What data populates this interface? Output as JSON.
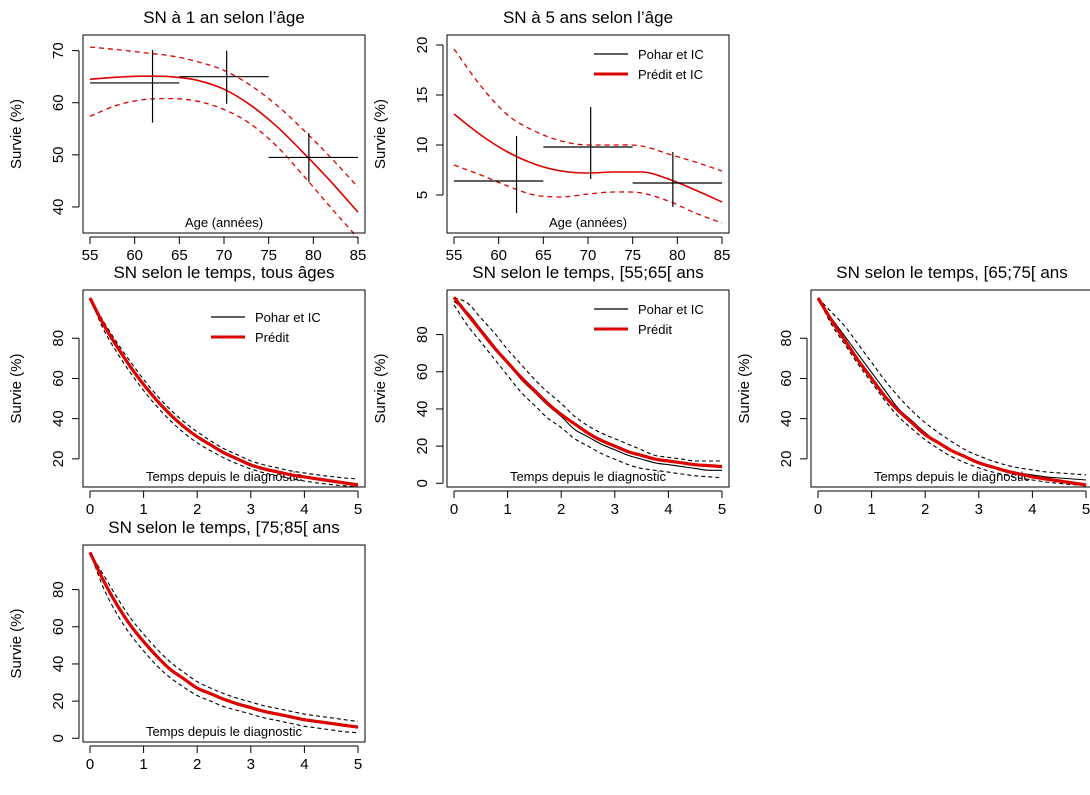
{
  "colors": {
    "observed": "#000000",
    "predicted": "#dd0000",
    "background": "#ffffff"
  },
  "legends": [
    {
      "items": [
        {
          "label": "Pohar et IC",
          "color": "#000000"
        },
        {
          "label": "Prédit et IC",
          "color": "#dd0000"
        }
      ]
    },
    {
      "items": [
        {
          "label": "Pohar et IC",
          "color": "#000000"
        },
        {
          "label": "Prédit",
          "color": "#dd0000"
        }
      ]
    }
  ],
  "chart_data": [
    {
      "type": "line",
      "title": "SN à 1 an selon l’âge",
      "xlabel": "Age (années)",
      "ylabel": "Survie (%)",
      "xlim": [
        55,
        85
      ],
      "ylim": [
        35,
        73
      ],
      "xticks": [
        55,
        60,
        65,
        70,
        75,
        80,
        85
      ],
      "yticks": [
        40,
        50,
        60,
        70
      ],
      "series": [
        {
          "name": "Prédit et IC",
          "role": "estimate",
          "x": [
            55,
            58,
            61,
            64,
            67,
            70,
            73,
            76,
            79,
            82,
            85
          ],
          "y": [
            64.5,
            64.9,
            65.1,
            65.0,
            64.3,
            62.6,
            59.5,
            55.3,
            50.2,
            44.8,
            39.0
          ]
        },
        {
          "role": "ci-upper",
          "x": [
            55,
            58,
            61,
            64,
            67,
            70,
            73,
            76,
            79,
            82,
            85
          ],
          "y": [
            70.7,
            70.2,
            69.6,
            69.0,
            67.9,
            66.2,
            63.3,
            59.4,
            54.6,
            49.4,
            43.8
          ]
        },
        {
          "role": "ci-lower",
          "x": [
            55,
            58,
            61,
            64,
            67,
            70,
            73,
            76,
            79,
            82,
            85
          ],
          "y": [
            57.4,
            59.5,
            60.6,
            60.8,
            60.3,
            58.7,
            55.9,
            51.5,
            45.8,
            39.8,
            34.0
          ]
        }
      ],
      "points": [
        {
          "x": 62,
          "xmin": 55,
          "xmax": 65,
          "y": 63.8,
          "ymin": 56.2,
          "ymax": 70.1
        },
        {
          "x": 70.3,
          "xmin": 65,
          "xmax": 75,
          "y": 65.0,
          "ymin": 59.8,
          "ymax": 70.0
        },
        {
          "x": 79.5,
          "xmin": 75,
          "xmax": 85,
          "y": 49.5,
          "ymin": 44.8,
          "ymax": 54.2
        }
      ]
    },
    {
      "type": "line",
      "title": "SN à 5 ans selon l’âge",
      "xlabel": "Age (années)",
      "ylabel": "Survie (%)",
      "xlim": [
        55,
        85
      ],
      "ylim": [
        1.2,
        21
      ],
      "xticks": [
        55,
        60,
        65,
        70,
        75,
        80,
        85
      ],
      "yticks": [
        5,
        10,
        15,
        20
      ],
      "legend": 0,
      "series": [
        {
          "name": "Prédit et IC",
          "role": "estimate",
          "x": [
            55,
            58,
            61,
            64,
            67,
            70,
            73,
            76,
            79,
            82,
            85
          ],
          "y": [
            13.1,
            11.0,
            9.3,
            8.1,
            7.4,
            7.2,
            7.3,
            7.3,
            6.6,
            5.5,
            4.3
          ]
        },
        {
          "role": "ci-upper",
          "x": [
            55,
            58,
            61,
            64,
            67,
            70,
            73,
            76,
            79,
            82,
            85
          ],
          "y": [
            19.6,
            15.9,
            13.0,
            11.4,
            10.4,
            10.0,
            10.0,
            9.9,
            9.1,
            8.3,
            7.4
          ]
        },
        {
          "role": "ci-lower",
          "x": [
            55,
            58,
            61,
            64,
            67,
            70,
            73,
            76,
            79,
            82,
            85
          ],
          "y": [
            8.0,
            7.0,
            5.9,
            5.0,
            4.8,
            5.1,
            5.3,
            5.2,
            4.4,
            3.2,
            2.2
          ]
        }
      ],
      "points": [
        {
          "x": 62,
          "xmin": 55,
          "xmax": 65,
          "y": 6.4,
          "ymin": 3.2,
          "ymax": 10.9
        },
        {
          "x": 70.3,
          "xmin": 65,
          "xmax": 75,
          "y": 9.8,
          "ymin": 6.6,
          "ymax": 13.8
        },
        {
          "x": 79.5,
          "xmin": 75,
          "xmax": 85,
          "y": 6.2,
          "ymin": 3.8,
          "ymax": 9.3
        }
      ]
    },
    {
      "type": "line",
      "title": "SN selon le temps, tous âges",
      "xlabel": "Temps depuis le diagnostic",
      "ylabel": "Survie (%)",
      "xlim": [
        0,
        5
      ],
      "ylim": [
        6,
        104
      ],
      "xticks": [
        0,
        1,
        2,
        3,
        4,
        5
      ],
      "yticks": [
        20,
        40,
        60,
        80
      ],
      "legend": 1,
      "x": [
        0,
        0.25,
        0.5,
        0.75,
        1,
        1.25,
        1.5,
        1.75,
        2,
        2.25,
        2.5,
        2.75,
        3,
        3.25,
        3.5,
        3.75,
        4,
        4.25,
        4.5,
        4.75,
        5
      ],
      "series": [
        {
          "name": "Prédit",
          "role": "predicted",
          "y": [
            100,
            87,
            76,
            66,
            57,
            49,
            42,
            36,
            31,
            27,
            23,
            20,
            17,
            15,
            13.5,
            12,
            11,
            10,
            9,
            8,
            7
          ]
        },
        {
          "name": "Pohar et IC",
          "role": "observed",
          "y": [
            100,
            86.5,
            75.5,
            65.5,
            56.5,
            48.5,
            41.5,
            35.5,
            30.5,
            26.5,
            22.5,
            19.5,
            16.5,
            14.5,
            13,
            11.8,
            10.8,
            9.8,
            8.8,
            7.9,
            7
          ]
        },
        {
          "role": "ci-upper",
          "y": [
            100,
            88.5,
            78,
            68.5,
            59.5,
            51.5,
            44.5,
            38.5,
            33.5,
            29,
            25,
            22,
            19,
            17,
            15.5,
            14,
            13,
            12,
            11.2,
            10.5,
            10
          ]
        },
        {
          "role": "ci-lower",
          "y": [
            100,
            84.5,
            73,
            63,
            54,
            46,
            39,
            33,
            28,
            24,
            20.5,
            17.5,
            15,
            13,
            11.5,
            10.2,
            9,
            8,
            7.2,
            6.6,
            6
          ]
        }
      ]
    },
    {
      "type": "line",
      "title": "SN selon le temps, [55;65[ ans",
      "xlabel": "Temps depuis le diagnostic",
      "ylabel": "Survie (%)",
      "xlim": [
        0,
        5
      ],
      "ylim": [
        -2,
        104
      ],
      "xticks": [
        0,
        1,
        2,
        3,
        4,
        5
      ],
      "yticks": [
        0,
        20,
        40,
        60,
        80
      ],
      "legend": 1,
      "x": [
        0,
        0.25,
        0.5,
        0.75,
        1,
        1.25,
        1.5,
        1.75,
        2,
        2.25,
        2.5,
        2.75,
        3,
        3.25,
        3.5,
        3.75,
        4,
        4.25,
        4.5,
        4.75,
        5
      ],
      "series": [
        {
          "name": "Prédit",
          "role": "predicted",
          "y": [
            100,
            91,
            82,
            73,
            65,
            57,
            50,
            43,
            37,
            32,
            27,
            23,
            20,
            17,
            15,
            13,
            12,
            11,
            10,
            9.5,
            9
          ]
        },
        {
          "name": "Pohar et IC",
          "role": "observed",
          "y": [
            98,
            92,
            83,
            74,
            65,
            56,
            49,
            42,
            36,
            29,
            25,
            21,
            18,
            15,
            13,
            11,
            10,
            9,
            8,
            7,
            7
          ]
        },
        {
          "role": "ci-upper",
          "y": [
            100,
            97,
            89,
            81,
            72,
            64,
            56,
            49,
            43,
            36,
            31,
            27,
            24,
            21,
            18,
            15,
            14,
            13,
            12,
            12,
            12
          ]
        },
        {
          "role": "ci-lower",
          "y": [
            96,
            85,
            76,
            67,
            58,
            49,
            42,
            35,
            30,
            24,
            20,
            16,
            13,
            10,
            8,
            7,
            6,
            5,
            4,
            3.5,
            3
          ]
        }
      ]
    },
    {
      "type": "line",
      "title": "SN selon le temps, [65;75[ ans",
      "xlabel": "Temps depuis le diagnostic",
      "ylabel": "Survie (%)",
      "xlim": [
        0,
        5
      ],
      "ylim": [
        6,
        104
      ],
      "xticks": [
        0,
        1,
        2,
        3,
        4,
        5
      ],
      "yticks": [
        20,
        40,
        60,
        80
      ],
      "x": [
        0,
        0.25,
        0.5,
        0.75,
        1,
        1.25,
        1.5,
        1.75,
        2,
        2.25,
        2.5,
        2.75,
        3,
        3.25,
        3.5,
        3.75,
        4,
        4.25,
        4.5,
        4.75,
        5
      ],
      "series": [
        {
          "name": "Prédit",
          "role": "predicted",
          "y": [
            100,
            89,
            79,
            69,
            60,
            51,
            44,
            38,
            32,
            28,
            24,
            21,
            18,
            16,
            14,
            12.5,
            11,
            10,
            9,
            8,
            7
          ]
        },
        {
          "name": "Pohar et IC",
          "role": "observed",
          "y": [
            100,
            90,
            81,
            72,
            63,
            54,
            45,
            39,
            33,
            28,
            24,
            21,
            18,
            16,
            14.5,
            13,
            12,
            11,
            10.5,
            10,
            9.5
          ]
        },
        {
          "role": "ci-upper",
          "y": [
            100,
            93,
            86,
            77,
            68,
            59,
            51,
            44,
            38,
            33,
            28.5,
            24.5,
            21.5,
            19,
            17,
            15.5,
            14.5,
            13.5,
            13,
            12.5,
            12
          ]
        },
        {
          "role": "ci-lower",
          "y": [
            100,
            87,
            77,
            67,
            58,
            49,
            41,
            35,
            29.5,
            25,
            21,
            18,
            15.5,
            13.5,
            12,
            10.5,
            9.5,
            8.5,
            7.8,
            7.2,
            6.8
          ]
        }
      ]
    },
    {
      "type": "line",
      "title": "SN selon le temps, [75;85[ ans",
      "xlabel": "Temps depuis le diagnostic",
      "ylabel": "Survie (%)",
      "xlim": [
        0,
        5
      ],
      "ylim": [
        -2,
        104
      ],
      "xticks": [
        0,
        1,
        2,
        3,
        4,
        5
      ],
      "yticks": [
        0,
        20,
        40,
        60,
        80
      ],
      "x": [
        0,
        0.25,
        0.5,
        0.75,
        1,
        1.25,
        1.5,
        1.75,
        2,
        2.25,
        2.5,
        2.75,
        3,
        3.25,
        3.5,
        3.75,
        4,
        4.25,
        4.5,
        4.75,
        5
      ],
      "series": [
        {
          "name": "Prédit",
          "role": "predicted",
          "y": [
            100,
            85,
            72,
            61,
            52,
            44,
            37,
            32,
            27,
            24,
            21,
            18.5,
            16.5,
            14.5,
            13,
            11.5,
            10,
            9,
            8,
            7,
            6
          ]
        },
        {
          "name": "Pohar et IC",
          "role": "observed",
          "y": [
            100,
            84.5,
            71.5,
            60.5,
            51.5,
            43.5,
            36.5,
            31.5,
            26.5,
            23.5,
            20.5,
            18,
            16,
            14,
            12.5,
            11,
            9.5,
            8.5,
            7.5,
            6.5,
            5.5
          ]
        },
        {
          "role": "ci-upper",
          "y": [
            100,
            88,
            76,
            65,
            56,
            48,
            41,
            35.5,
            30.5,
            27,
            24,
            21.5,
            19.5,
            17.5,
            16,
            14.5,
            13,
            12,
            11,
            10,
            9
          ]
        },
        {
          "role": "ci-lower",
          "y": [
            100,
            81,
            67,
            56,
            47,
            39,
            32.5,
            27.5,
            23,
            20,
            17,
            15,
            13,
            11,
            9.5,
            8,
            6.5,
            5.5,
            4.5,
            3.5,
            3
          ]
        }
      ]
    }
  ]
}
